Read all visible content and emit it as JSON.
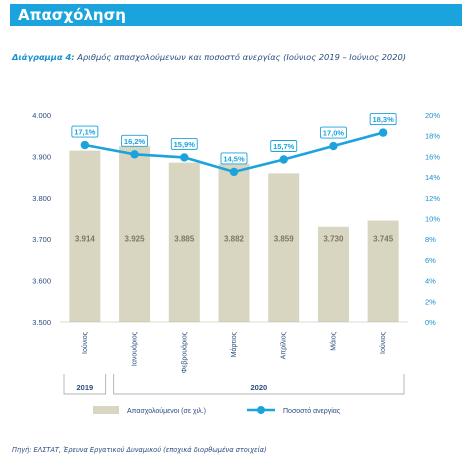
{
  "header": {
    "title": "Απασχόληση"
  },
  "caption": {
    "prefix": "Διάγραμμα 4:",
    "text": "Αριθμός απασχολούμενων και ποσοστό ανεργίας (Ιούνιος 2019 – Ιούνιος 2020)"
  },
  "colors": {
    "header_bg": "#1aa3dc",
    "bar": "#d8d5c1",
    "line": "#1aa3dc",
    "axis_text": "#2b4c7e",
    "right_axis_text": "#1a8fcf",
    "bar_label": "#7a7867"
  },
  "chart_data": {
    "type": "bar",
    "categories": [
      "Ιούνιος",
      "Ιανουάριος",
      "Φεβρουάριος",
      "Μάρτιος",
      "Απρίλιος",
      "Μάιος",
      "Ιούνιος"
    ],
    "year_groups": [
      {
        "label": "2019",
        "categories": [
          0
        ]
      },
      {
        "label": "2020",
        "categories": [
          1,
          2,
          3,
          4,
          5,
          6
        ]
      }
    ],
    "series": [
      {
        "name": "Απασχολούμενοι (σε χιλ.)",
        "type": "bar",
        "axis": "left",
        "values": [
          3914,
          3925,
          3885,
          3882,
          3859,
          3730,
          3745
        ],
        "labels": [
          "3.914",
          "3.925",
          "3.885",
          "3.882",
          "3.859",
          "3.730",
          "3.745"
        ]
      },
      {
        "name": "Ποσοστό ανεργίας",
        "type": "line",
        "axis": "right",
        "values": [
          17.1,
          16.2,
          15.9,
          14.5,
          15.7,
          17.0,
          18.3
        ],
        "labels": [
          "17,1%",
          "16,2%",
          "15,9%",
          "14,5%",
          "15,7%",
          "17,0%",
          "18,3%"
        ]
      }
    ],
    "left_axis": {
      "ylim": [
        3500,
        4000
      ],
      "ticks": [
        3500,
        3600,
        3700,
        3800,
        3900,
        4000
      ],
      "tick_labels": [
        "3.500",
        "3.600",
        "3.700",
        "3.800",
        "3.900",
        "4.000"
      ]
    },
    "right_axis": {
      "ylim": [
        0,
        20
      ],
      "ticks": [
        0,
        2,
        4,
        6,
        8,
        10,
        12,
        14,
        16,
        18,
        20
      ],
      "tick_labels": [
        "0%",
        "2%",
        "4%",
        "6%",
        "8%",
        "10%",
        "12%",
        "14%",
        "16%",
        "18%",
        "20%"
      ]
    },
    "grid": false,
    "legend_position": "bottom"
  },
  "source": "Πηγή: ΕΛΣΤΑΤ, Έρευνα Εργατικού Δυναμικού (εποχικά διορθωμένα στοιχεία)"
}
